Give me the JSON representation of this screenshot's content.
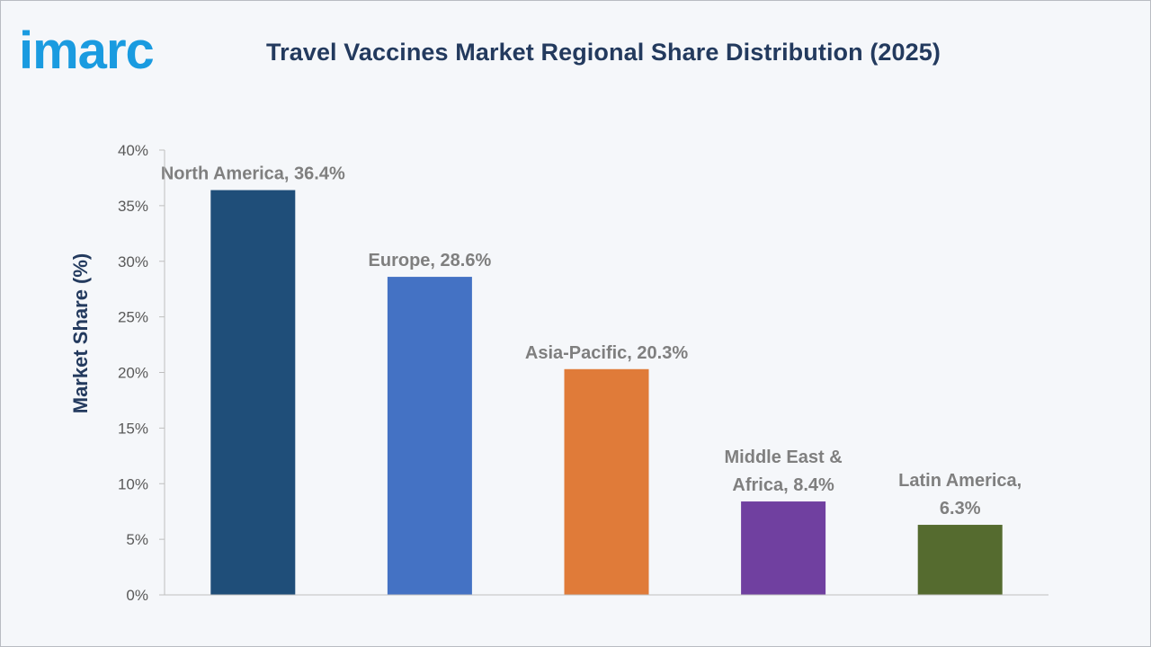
{
  "brand": {
    "logo_text": "imarc"
  },
  "chart_data": {
    "type": "bar",
    "title": "Travel Vaccines Market Regional Share Distribution (2025)",
    "ylabel": "Market Share (%)",
    "xlabel": "",
    "ylim": [
      0,
      40
    ],
    "yticks": [
      0,
      5,
      10,
      15,
      20,
      25,
      30,
      35,
      40
    ],
    "ytick_labels": [
      "0%",
      "5%",
      "10%",
      "15%",
      "20%",
      "25%",
      "30%",
      "35%",
      "40%"
    ],
    "categories": [
      "North America",
      "Europe",
      "Asia-Pacific",
      "Middle East & Africa",
      "Latin America"
    ],
    "values": [
      36.4,
      28.6,
      20.3,
      8.4,
      6.3
    ],
    "data_labels": [
      [
        "North America, 36.4%"
      ],
      [
        "Europe, 28.6%"
      ],
      [
        "Asia-Pacific, 20.3%"
      ],
      [
        "Middle East &",
        "Africa, 8.4%"
      ],
      [
        "Latin America,",
        "6.3%"
      ]
    ],
    "colors": [
      "#1f4e79",
      "#4472c4",
      "#e07b39",
      "#7040a0",
      "#556b2f"
    ],
    "grid": false,
    "legend": "none"
  }
}
